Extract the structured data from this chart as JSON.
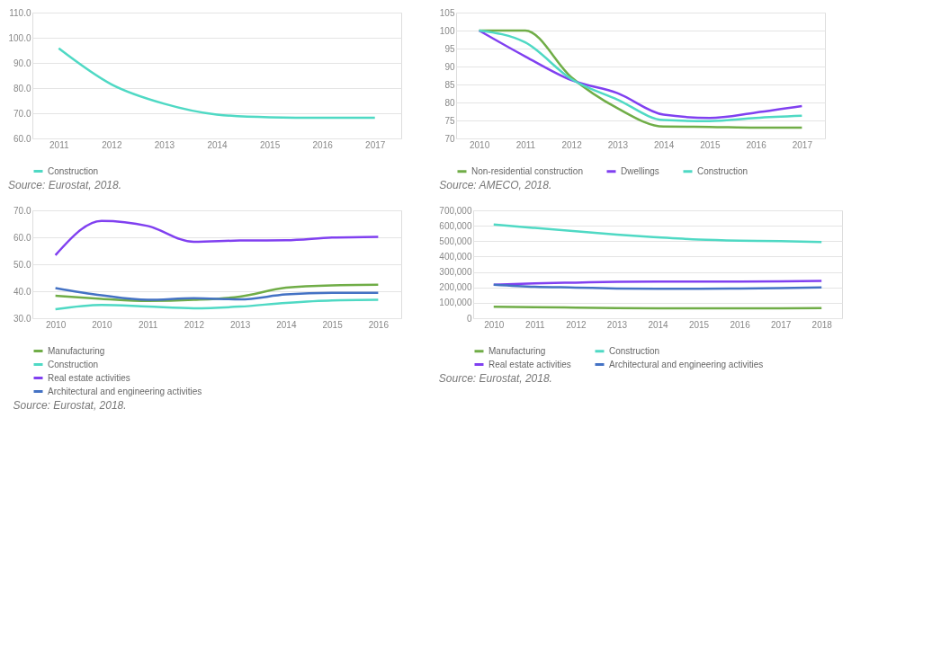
{
  "chart_data": [
    {
      "type": "line",
      "categories": [
        "2011",
        "2012",
        "2013",
        "2014",
        "2015",
        "2016",
        "2017"
      ],
      "ylim": [
        60,
        110
      ],
      "yticks": [
        {
          "value": 60,
          "label": "60.0"
        },
        {
          "value": 70,
          "label": "70.0"
        },
        {
          "value": 80,
          "label": "80.0"
        },
        {
          "value": 90,
          "label": "90.0"
        },
        {
          "value": 100,
          "label": "100.0"
        },
        {
          "value": 110,
          "label": "110.0"
        }
      ],
      "grid": "y",
      "legend": "bottom",
      "annotations": [
        "Source: Eurostat, 2018."
      ],
      "series": [
        {
          "name": "Construction",
          "color": "#4fd9c4",
          "values": [
            95.8,
            81.5,
            73.8,
            69.5,
            68.4,
            68.2,
            68.2
          ]
        }
      ]
    },
    {
      "type": "line",
      "categories": [
        "2010",
        "2011",
        "2012",
        "2013",
        "2014",
        "2015",
        "2016",
        "2017"
      ],
      "ylim": [
        70,
        105
      ],
      "yticks": [
        70,
        75,
        80,
        85,
        90,
        95,
        100,
        105
      ],
      "grid": "y",
      "legend": "bottom",
      "annotations": [
        "Source: AMECO, 2018."
      ],
      "series": [
        {
          "name": "Non-residential construction",
          "color": "#70ad47",
          "values": [
            100,
            100,
            87,
            78.4,
            73.3,
            73.2,
            73,
            73
          ]
        },
        {
          "name": "Dwellings",
          "color": "#8040f0",
          "values": [
            100,
            92.8,
            86.2,
            82.6,
            76.6,
            75.7,
            77.2,
            79
          ]
        },
        {
          "name": "Construction",
          "color": "#4fd9c4",
          "values": [
            100,
            96.7,
            86.5,
            80.8,
            75.1,
            74.8,
            75.7,
            76.3
          ]
        }
      ]
    },
    {
      "type": "line",
      "categories": [
        "2010",
        "2010",
        "2011",
        "2012",
        "2013",
        "2014",
        "2015",
        "2016"
      ],
      "ylim": [
        30,
        70
      ],
      "yticks": [
        {
          "value": 30,
          "label": "30.0"
        },
        {
          "value": 40,
          "label": "40.0"
        },
        {
          "value": 50,
          "label": "50.0"
        },
        {
          "value": 60,
          "label": "60.0"
        },
        {
          "value": 70,
          "label": "70.0"
        }
      ],
      "grid": "y",
      "legend": "bottom",
      "annotations": [
        "Source: Eurostat, 2018."
      ],
      "series": [
        {
          "name": "Manufacturing",
          "color": "#70ad47",
          "values": [
            38.3,
            37.2,
            36.4,
            36.8,
            38.0,
            41.3,
            42.2,
            42.4
          ]
        },
        {
          "name": "Construction",
          "color": "#4fd9c4",
          "values": [
            33.3,
            34.9,
            34.3,
            33.7,
            34.3,
            35.7,
            36.6,
            36.8
          ]
        },
        {
          "name": "Real estate activities",
          "color": "#8040f0",
          "values": [
            53.4,
            66.1,
            64.2,
            58.3,
            58.8,
            58.9,
            59.9,
            60.2
          ]
        },
        {
          "name": "Architectural and engineering activities",
          "color": "#4472c4",
          "values": [
            41.2,
            38.5,
            36.8,
            37.4,
            37.0,
            38.8,
            39.4,
            39.4
          ]
        }
      ]
    },
    {
      "type": "line",
      "categories": [
        "2010",
        "2011",
        "2012",
        "2013",
        "2014",
        "2015",
        "2016",
        "2017",
        "2018"
      ],
      "ylim": [
        0,
        700000
      ],
      "yticks": [
        0,
        {
          "value": 100000,
          "label": "100,000"
        },
        {
          "value": 200000,
          "label": "200,000"
        },
        {
          "value": 300000,
          "label": "300,000"
        },
        {
          "value": 400000,
          "label": "400,000"
        },
        {
          "value": 500000,
          "label": "500,000"
        },
        {
          "value": 600000,
          "label": "600,000"
        },
        {
          "value": 700000,
          "label": "700,000"
        }
      ],
      "grid": "y",
      "legend": "bottom",
      "annotations": [
        "Source: Eurostat, 2018."
      ],
      "series": [
        {
          "name": "Manufacturing",
          "color": "#70ad47",
          "values": [
            74000,
            71000,
            69000,
            66000,
            64000,
            64000,
            64000,
            64000,
            66000
          ]
        },
        {
          "name": "Construction",
          "color": "#4fd9c4",
          "values": [
            608000,
            586000,
            564000,
            542000,
            525000,
            510000,
            503000,
            500000,
            494000
          ]
        },
        {
          "name": "Real estate activities",
          "color": "#8040f0",
          "values": [
            218000,
            226000,
            231000,
            236000,
            238000,
            238000,
            238000,
            239000,
            242000
          ]
        },
        {
          "name": "Architectural and engineering activities",
          "color": "#4472c4",
          "values": [
            218000,
            204000,
            199000,
            193000,
            191000,
            191000,
            193000,
            196000,
            200000
          ]
        }
      ]
    }
  ]
}
